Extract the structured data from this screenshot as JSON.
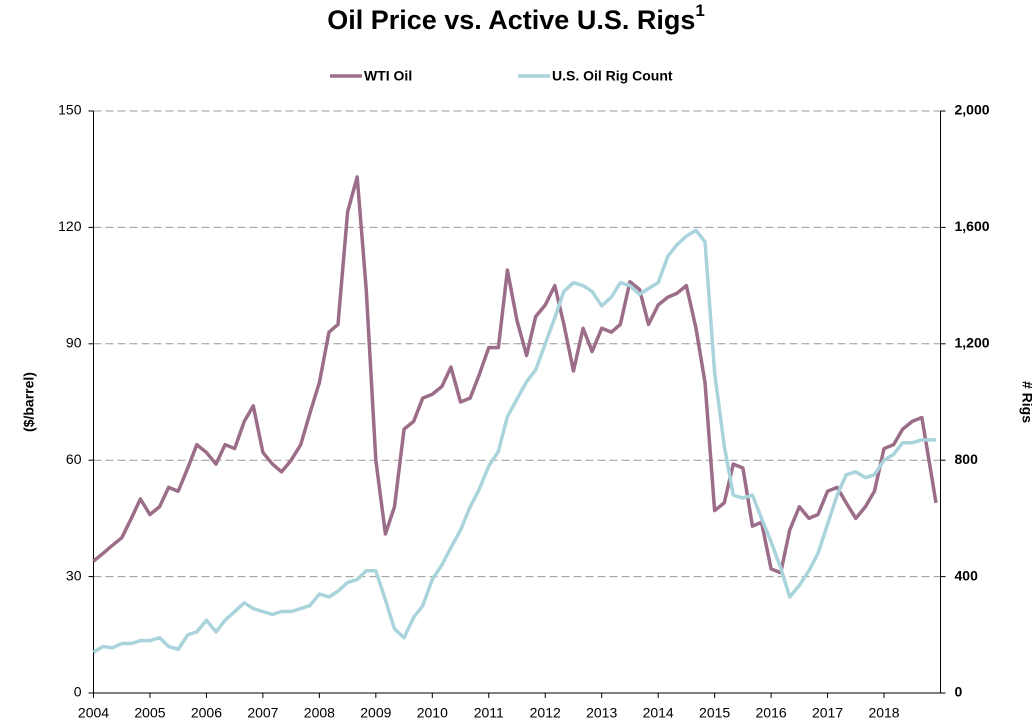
{
  "chart_data": {
    "type": "line",
    "title": "Oil Price vs. Active U.S. Rigs",
    "title_superscript": "1",
    "ylabel": "($/barrel)",
    "y2label": "# Rigs",
    "x": [
      2004,
      2004.17,
      2004.33,
      2004.5,
      2004.67,
      2004.83,
      2005,
      2005.17,
      2005.33,
      2005.5,
      2005.67,
      2005.83,
      2006,
      2006.17,
      2006.33,
      2006.5,
      2006.67,
      2006.83,
      2007,
      2007.17,
      2007.33,
      2007.5,
      2007.67,
      2007.83,
      2008,
      2008.17,
      2008.33,
      2008.5,
      2008.67,
      2008.83,
      2009,
      2009.17,
      2009.33,
      2009.5,
      2009.67,
      2009.83,
      2010,
      2010.17,
      2010.33,
      2010.5,
      2010.67,
      2010.83,
      2011,
      2011.17,
      2011.33,
      2011.5,
      2011.67,
      2011.83,
      2012,
      2012.17,
      2012.33,
      2012.5,
      2012.67,
      2012.83,
      2013,
      2013.17,
      2013.33,
      2013.5,
      2013.67,
      2013.83,
      2014,
      2014.17,
      2014.33,
      2014.5,
      2014.67,
      2014.83,
      2015,
      2015.17,
      2015.33,
      2015.5,
      2015.67,
      2015.83,
      2016,
      2016.17,
      2016.33,
      2016.5,
      2016.67,
      2016.83,
      2017,
      2017.17,
      2017.33,
      2017.5,
      2017.67,
      2017.83,
      2018,
      2018.17,
      2018.33,
      2018.5,
      2018.67,
      2018.83,
      2018.92
    ],
    "series": [
      {
        "name": "WTI Oil",
        "color": "#9c6d88",
        "values": [
          34,
          36,
          38,
          40,
          45,
          50,
          46,
          48,
          53,
          52,
          58,
          64,
          62,
          59,
          64,
          63,
          70,
          74,
          62,
          59,
          57,
          60,
          64,
          72,
          80,
          93,
          95,
          124,
          133,
          104,
          60,
          41,
          48,
          68,
          70,
          76,
          77,
          79,
          84,
          75,
          76,
          82,
          89,
          89,
          109,
          96,
          87,
          97,
          100,
          105,
          95,
          83,
          94,
          88,
          94,
          93,
          95,
          106,
          104,
          95,
          100,
          102,
          103,
          105,
          94,
          80,
          47,
          49,
          59,
          58,
          43,
          44,
          32,
          31,
          42,
          48,
          45,
          46,
          52,
          53,
          49,
          45,
          48,
          52,
          63,
          64,
          68,
          70,
          71,
          57,
          49
        ]
      },
      {
        "name": "U.S. Oil Rig Count",
        "color": "#a9d4dc",
        "axis": "y2",
        "values": [
          140,
          160,
          155,
          170,
          170,
          180,
          180,
          190,
          160,
          150,
          200,
          210,
          250,
          210,
          250,
          280,
          310,
          290,
          280,
          270,
          280,
          280,
          290,
          300,
          340,
          330,
          350,
          380,
          390,
          420,
          420,
          320,
          220,
          190,
          260,
          300,
          390,
          440,
          500,
          560,
          640,
          700,
          780,
          830,
          950,
          1010,
          1070,
          1110,
          1200,
          1290,
          1380,
          1410,
          1400,
          1380,
          1330,
          1360,
          1410,
          1400,
          1370,
          1390,
          1410,
          1500,
          1540,
          1570,
          1590,
          1550,
          1100,
          850,
          680,
          670,
          680,
          600,
          520,
          430,
          330,
          370,
          420,
          480,
          580,
          680,
          750,
          760,
          740,
          750,
          800,
          820,
          860,
          860,
          870,
          870,
          870
        ]
      }
    ],
    "xlim": [
      2004,
      2019
    ],
    "xticks": [
      2004,
      2005,
      2006,
      2007,
      2008,
      2009,
      2010,
      2011,
      2012,
      2013,
      2014,
      2015,
      2016,
      2017,
      2018
    ],
    "ylim": [
      0,
      150
    ],
    "yticks": [
      0,
      30,
      60,
      90,
      120,
      150
    ],
    "y2lim": [
      0,
      2000
    ],
    "y2ticks": [
      0,
      {
        "value": 400,
        "label": "400"
      },
      {
        "value": 800,
        "label": "800"
      },
      {
        "value": 1200,
        "label": "1,200"
      },
      {
        "value": 1600,
        "label": "1,600"
      },
      {
        "value": 2000,
        "label": "2,000"
      }
    ],
    "grid": true,
    "legend": "top"
  }
}
